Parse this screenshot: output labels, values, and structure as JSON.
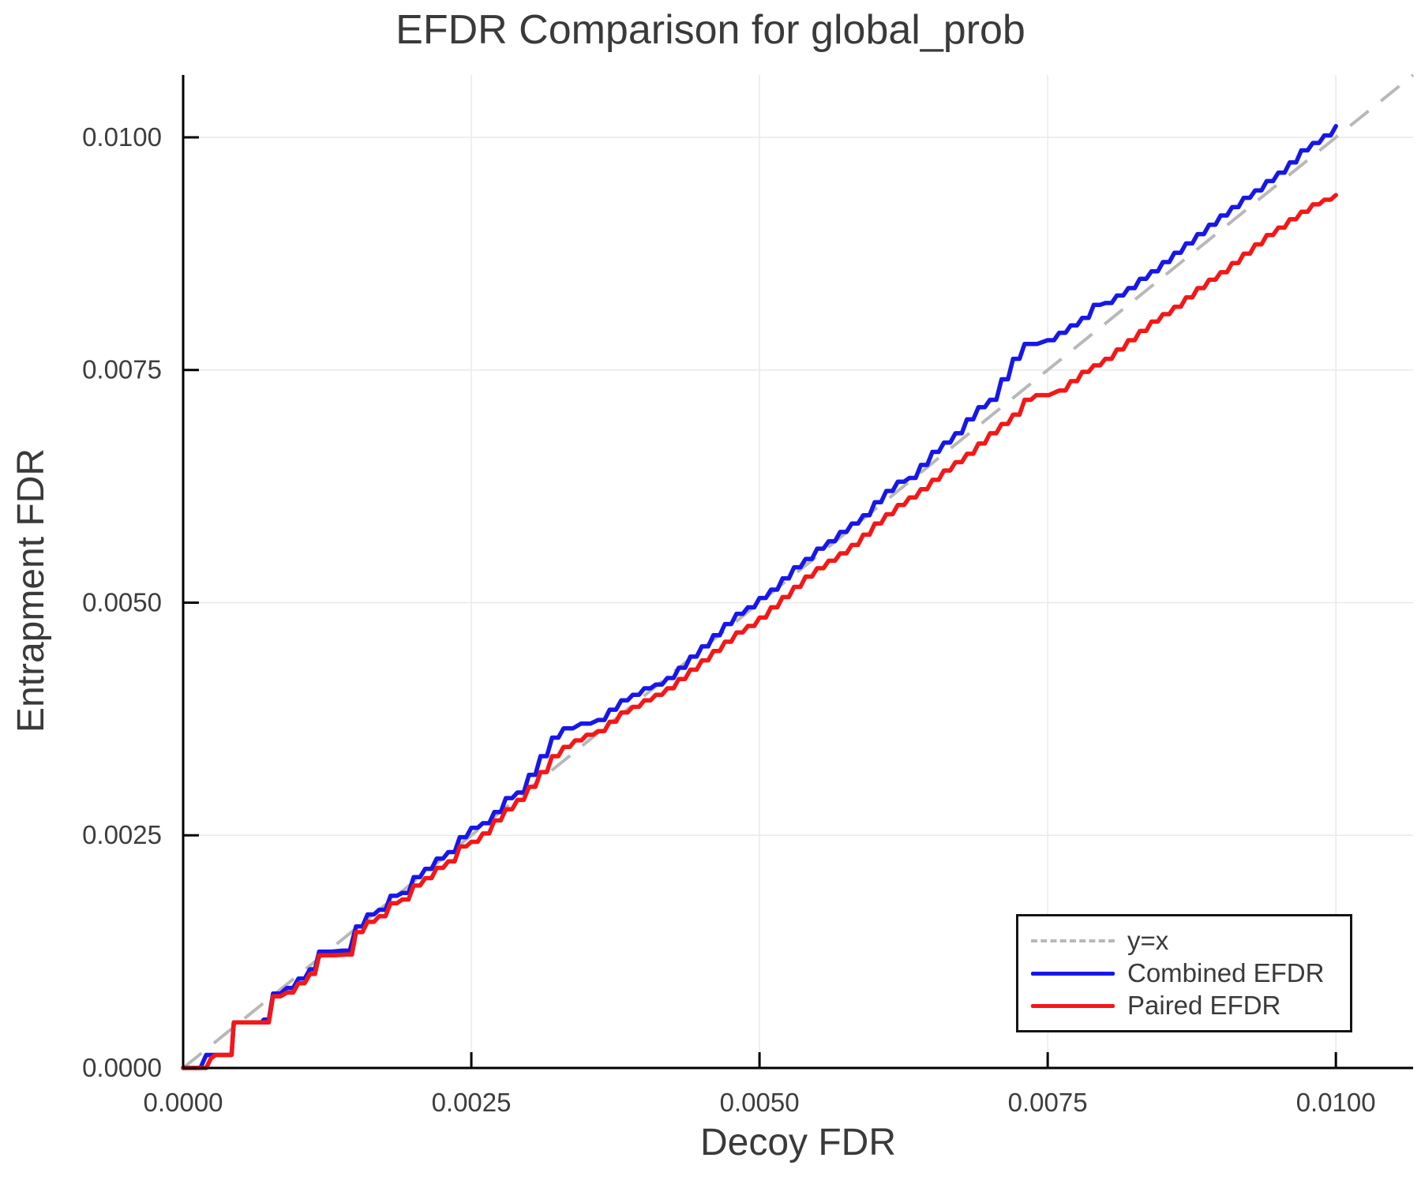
{
  "figure": {
    "title": "EFDR Comparison for global_prob",
    "xlabel": "Decoy FDR",
    "ylabel": "Entrapment FDR"
  },
  "legend": {
    "items": [
      {
        "label": "y=x",
        "color": "#b8b8b8",
        "style": "dashed"
      },
      {
        "label": "Combined EFDR",
        "color": "#1717e8",
        "style": "solid"
      },
      {
        "label": "Paired EFDR",
        "color": "#f41717",
        "style": "solid"
      }
    ]
  },
  "colors": {
    "combined": "#1717e8",
    "paired": "#f41717",
    "identity": "#b8b8b8",
    "grid": "#e9e9e9",
    "spine": "#000000",
    "text": "#3d3d3d"
  },
  "chart_data": {
    "type": "line",
    "title": "EFDR Comparison for global_prob",
    "xlabel": "Decoy FDR",
    "ylabel": "Entrapment FDR",
    "xlim": [
      0,
      0.01067
    ],
    "ylim": [
      0,
      0.01067
    ],
    "grid": true,
    "legend_position": "bottom-right",
    "xticks": {
      "values": [
        0.0,
        0.0025,
        0.005,
        0.0075,
        0.01
      ],
      "labels": [
        "0.0000",
        "0.0025",
        "0.0050",
        "0.0075",
        "0.0100"
      ]
    },
    "yticks": {
      "values": [
        0.0,
        0.0025,
        0.005,
        0.0075,
        0.01
      ],
      "labels": [
        "0.0000",
        "0.0025",
        "0.0050",
        "0.0075",
        "0.0100"
      ]
    },
    "reference_line": {
      "label": "y=x",
      "style": "dashed",
      "color": "#b8b8b8",
      "from": [
        0,
        0
      ],
      "to": [
        0.01067,
        0.01067
      ]
    },
    "series": [
      {
        "name": "Combined EFDR",
        "color": "#1717e8",
        "points": [
          [
            0.0,
            0.0
          ],
          [
            0.00015,
            0.0
          ],
          [
            0.0002,
            0.00014
          ],
          [
            0.00042,
            0.00014
          ],
          [
            0.00044,
            0.00049
          ],
          [
            0.00068,
            0.00049
          ],
          [
            0.0007,
            0.00052
          ],
          [
            0.00078,
            0.0008
          ],
          [
            0.0009,
            0.00086
          ],
          [
            0.001,
            0.00096
          ],
          [
            0.0011,
            0.00106
          ],
          [
            0.00118,
            0.00125
          ],
          [
            0.00138,
            0.00126
          ],
          [
            0.0015,
            0.00152
          ],
          [
            0.0016,
            0.00165
          ],
          [
            0.0017,
            0.0017
          ],
          [
            0.0018,
            0.00185
          ],
          [
            0.0019,
            0.00188
          ],
          [
            0.002,
            0.00205
          ],
          [
            0.0021,
            0.00214
          ],
          [
            0.0022,
            0.00225
          ],
          [
            0.0023,
            0.00232
          ],
          [
            0.0024,
            0.00248
          ],
          [
            0.0025,
            0.00258
          ],
          [
            0.0026,
            0.00263
          ],
          [
            0.0027,
            0.00275
          ],
          [
            0.0028,
            0.0029
          ],
          [
            0.0029,
            0.00296
          ],
          [
            0.003,
            0.00315
          ],
          [
            0.0031,
            0.00335
          ],
          [
            0.0032,
            0.00355
          ],
          [
            0.0033,
            0.00365
          ],
          [
            0.00345,
            0.0037
          ],
          [
            0.0036,
            0.00374
          ],
          [
            0.0037,
            0.00385
          ],
          [
            0.0038,
            0.00395
          ],
          [
            0.0039,
            0.00401
          ],
          [
            0.004,
            0.00408
          ],
          [
            0.0041,
            0.00412
          ],
          [
            0.0042,
            0.00419
          ],
          [
            0.0043,
            0.0043
          ],
          [
            0.0044,
            0.00442
          ],
          [
            0.0045,
            0.00453
          ],
          [
            0.0046,
            0.00465
          ],
          [
            0.0047,
            0.00477
          ],
          [
            0.0048,
            0.00488
          ],
          [
            0.0049,
            0.00495
          ],
          [
            0.005,
            0.00505
          ],
          [
            0.0051,
            0.00514
          ],
          [
            0.0052,
            0.00526
          ],
          [
            0.0053,
            0.00538
          ],
          [
            0.0054,
            0.00547
          ],
          [
            0.0055,
            0.00558
          ],
          [
            0.0056,
            0.00566
          ],
          [
            0.0057,
            0.00576
          ],
          [
            0.0058,
            0.00585
          ],
          [
            0.0059,
            0.00594
          ],
          [
            0.006,
            0.00608
          ],
          [
            0.0061,
            0.0062
          ],
          [
            0.0062,
            0.0063
          ],
          [
            0.0063,
            0.00634
          ],
          [
            0.0064,
            0.00648
          ],
          [
            0.0065,
            0.00662
          ],
          [
            0.0066,
            0.00672
          ],
          [
            0.0067,
            0.00682
          ],
          [
            0.0068,
            0.00697
          ],
          [
            0.0069,
            0.0071
          ],
          [
            0.007,
            0.00718
          ],
          [
            0.0071,
            0.0074
          ],
          [
            0.0072,
            0.00762
          ],
          [
            0.0073,
            0.00778
          ],
          [
            0.0075,
            0.00782
          ],
          [
            0.0076,
            0.0079
          ],
          [
            0.0077,
            0.00798
          ],
          [
            0.0078,
            0.00806
          ],
          [
            0.0079,
            0.0082
          ],
          [
            0.008,
            0.00822
          ],
          [
            0.0081,
            0.0083
          ],
          [
            0.0082,
            0.00838
          ],
          [
            0.0083,
            0.00848
          ],
          [
            0.0084,
            0.00856
          ],
          [
            0.0085,
            0.00866
          ],
          [
            0.0086,
            0.00876
          ],
          [
            0.0087,
            0.00886
          ],
          [
            0.0088,
            0.00896
          ],
          [
            0.0089,
            0.00906
          ],
          [
            0.009,
            0.00916
          ],
          [
            0.0091,
            0.00925
          ],
          [
            0.0092,
            0.00935
          ],
          [
            0.0093,
            0.00943
          ],
          [
            0.0094,
            0.00953
          ],
          [
            0.0095,
            0.00962
          ],
          [
            0.0096,
            0.00973
          ],
          [
            0.0097,
            0.00986
          ],
          [
            0.0098,
            0.00994
          ],
          [
            0.0099,
            0.01002
          ],
          [
            0.01,
            0.01012
          ]
        ]
      },
      {
        "name": "Paired EFDR",
        "color": "#f41717",
        "points": [
          [
            0.0,
            0.0
          ],
          [
            0.0002,
            0.0
          ],
          [
            0.00024,
            0.0001
          ],
          [
            0.00028,
            0.00014
          ],
          [
            0.00042,
            0.00014
          ],
          [
            0.00044,
            0.00049
          ],
          [
            0.0007,
            0.00049
          ],
          [
            0.00078,
            0.00077
          ],
          [
            0.0009,
            0.00081
          ],
          [
            0.001,
            0.00091
          ],
          [
            0.0011,
            0.00101
          ],
          [
            0.00118,
            0.00121
          ],
          [
            0.00142,
            0.00122
          ],
          [
            0.0015,
            0.00146
          ],
          [
            0.0016,
            0.00157
          ],
          [
            0.0017,
            0.00163
          ],
          [
            0.0018,
            0.00177
          ],
          [
            0.0019,
            0.00181
          ],
          [
            0.002,
            0.00196
          ],
          [
            0.0021,
            0.00204
          ],
          [
            0.0022,
            0.00215
          ],
          [
            0.0023,
            0.00222
          ],
          [
            0.0024,
            0.00238
          ],
          [
            0.0025,
            0.00243
          ],
          [
            0.0026,
            0.00252
          ],
          [
            0.0027,
            0.00266
          ],
          [
            0.0028,
            0.00278
          ],
          [
            0.0029,
            0.00288
          ],
          [
            0.003,
            0.00302
          ],
          [
            0.0031,
            0.00318
          ],
          [
            0.0032,
            0.00335
          ],
          [
            0.0033,
            0.00345
          ],
          [
            0.0034,
            0.00352
          ],
          [
            0.0035,
            0.00358
          ],
          [
            0.0036,
            0.00362
          ],
          [
            0.0037,
            0.00372
          ],
          [
            0.0038,
            0.00382
          ],
          [
            0.0039,
            0.00388
          ],
          [
            0.004,
            0.00395
          ],
          [
            0.0041,
            0.00401
          ],
          [
            0.0042,
            0.00408
          ],
          [
            0.0043,
            0.00418
          ],
          [
            0.0044,
            0.00428
          ],
          [
            0.0045,
            0.00438
          ],
          [
            0.0046,
            0.00448
          ],
          [
            0.0047,
            0.00458
          ],
          [
            0.0048,
            0.00468
          ],
          [
            0.0049,
            0.00475
          ],
          [
            0.005,
            0.00484
          ],
          [
            0.0051,
            0.00495
          ],
          [
            0.0052,
            0.00506
          ],
          [
            0.0053,
            0.00517
          ],
          [
            0.0054,
            0.00528
          ],
          [
            0.0055,
            0.00537
          ],
          [
            0.0056,
            0.00545
          ],
          [
            0.0057,
            0.00553
          ],
          [
            0.0058,
            0.00562
          ],
          [
            0.0059,
            0.00573
          ],
          [
            0.006,
            0.00585
          ],
          [
            0.0061,
            0.00595
          ],
          [
            0.0062,
            0.00605
          ],
          [
            0.0063,
            0.00613
          ],
          [
            0.0064,
            0.00622
          ],
          [
            0.0065,
            0.00632
          ],
          [
            0.0066,
            0.00642
          ],
          [
            0.0067,
            0.00651
          ],
          [
            0.0068,
            0.0066
          ],
          [
            0.0069,
            0.00671
          ],
          [
            0.007,
            0.00682
          ],
          [
            0.0071,
            0.00692
          ],
          [
            0.0072,
            0.00702
          ],
          [
            0.0073,
            0.00718
          ],
          [
            0.0074,
            0.00723
          ],
          [
            0.0076,
            0.00728
          ],
          [
            0.0077,
            0.00738
          ],
          [
            0.0078,
            0.00748
          ],
          [
            0.0079,
            0.00755
          ],
          [
            0.008,
            0.00762
          ],
          [
            0.0081,
            0.00772
          ],
          [
            0.0082,
            0.00782
          ],
          [
            0.0083,
            0.00792
          ],
          [
            0.0084,
            0.00802
          ],
          [
            0.0085,
            0.0081
          ],
          [
            0.0086,
            0.00818
          ],
          [
            0.0087,
            0.00828
          ],
          [
            0.0088,
            0.00838
          ],
          [
            0.0089,
            0.00847
          ],
          [
            0.009,
            0.00855
          ],
          [
            0.0091,
            0.00865
          ],
          [
            0.0092,
            0.00875
          ],
          [
            0.0093,
            0.00885
          ],
          [
            0.0094,
            0.00895
          ],
          [
            0.0095,
            0.00903
          ],
          [
            0.0096,
            0.00912
          ],
          [
            0.0097,
            0.0092
          ],
          [
            0.0098,
            0.00928
          ],
          [
            0.0099,
            0.00933
          ],
          [
            0.01,
            0.00938
          ]
        ]
      }
    ]
  }
}
